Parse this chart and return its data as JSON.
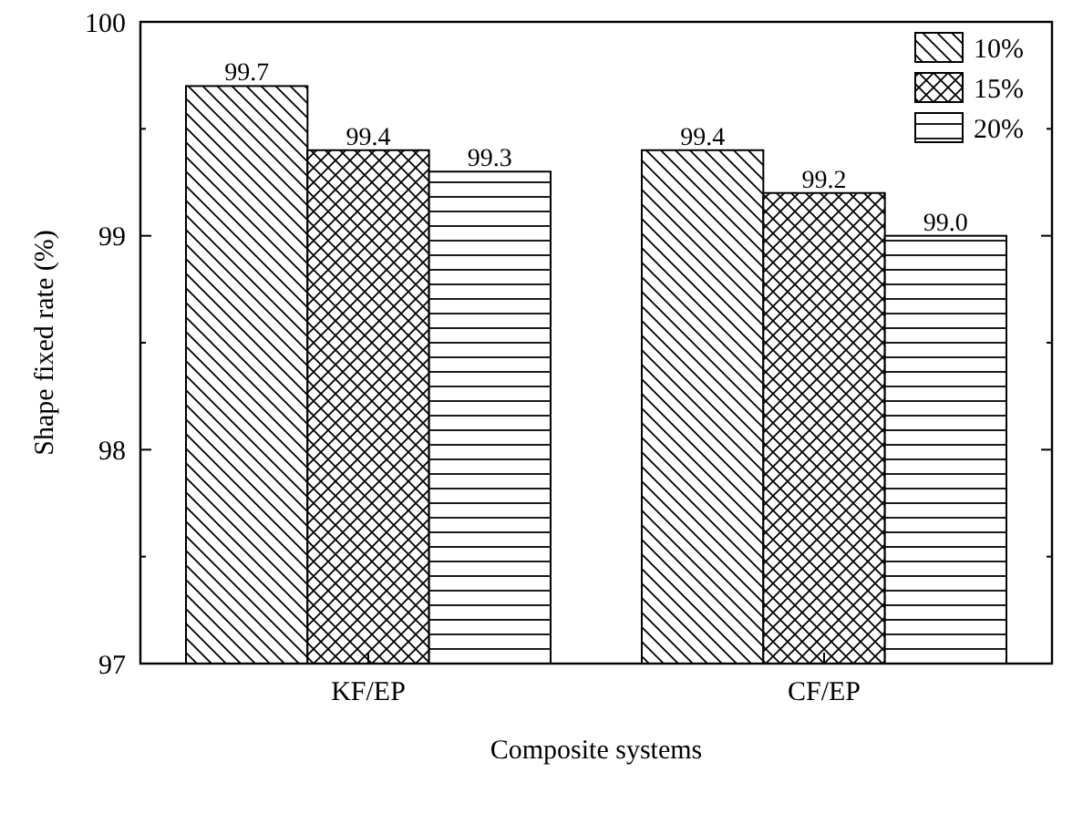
{
  "chart_data": {
    "type": "bar",
    "xlabel": "Composite systems",
    "ylabel": "Shape fixed rate (%)",
    "categories": [
      "KF/EP",
      "CF/EP"
    ],
    "series": [
      {
        "name": "10%",
        "color": "#000000",
        "values": [
          99.7,
          99.4
        ],
        "value_labels": [
          "99.7",
          "99.4"
        ]
      },
      {
        "name": "15%",
        "color": "#000000",
        "values": [
          99.4,
          99.2
        ],
        "value_labels": [
          "99.4",
          "99.2"
        ]
      },
      {
        "name": "20%",
        "color": "#000000",
        "values": [
          99.3,
          99.0
        ],
        "value_labels": [
          "99.3",
          "99.0"
        ]
      }
    ],
    "ylim": [
      97,
      100
    ],
    "yticks": [
      97,
      {
        "value": 97.5,
        "label": null
      },
      98,
      {
        "value": 98.5,
        "label": null
      },
      99,
      {
        "value": 99.5,
        "label": null
      },
      100
    ],
    "grid": false,
    "legend": "top right"
  }
}
